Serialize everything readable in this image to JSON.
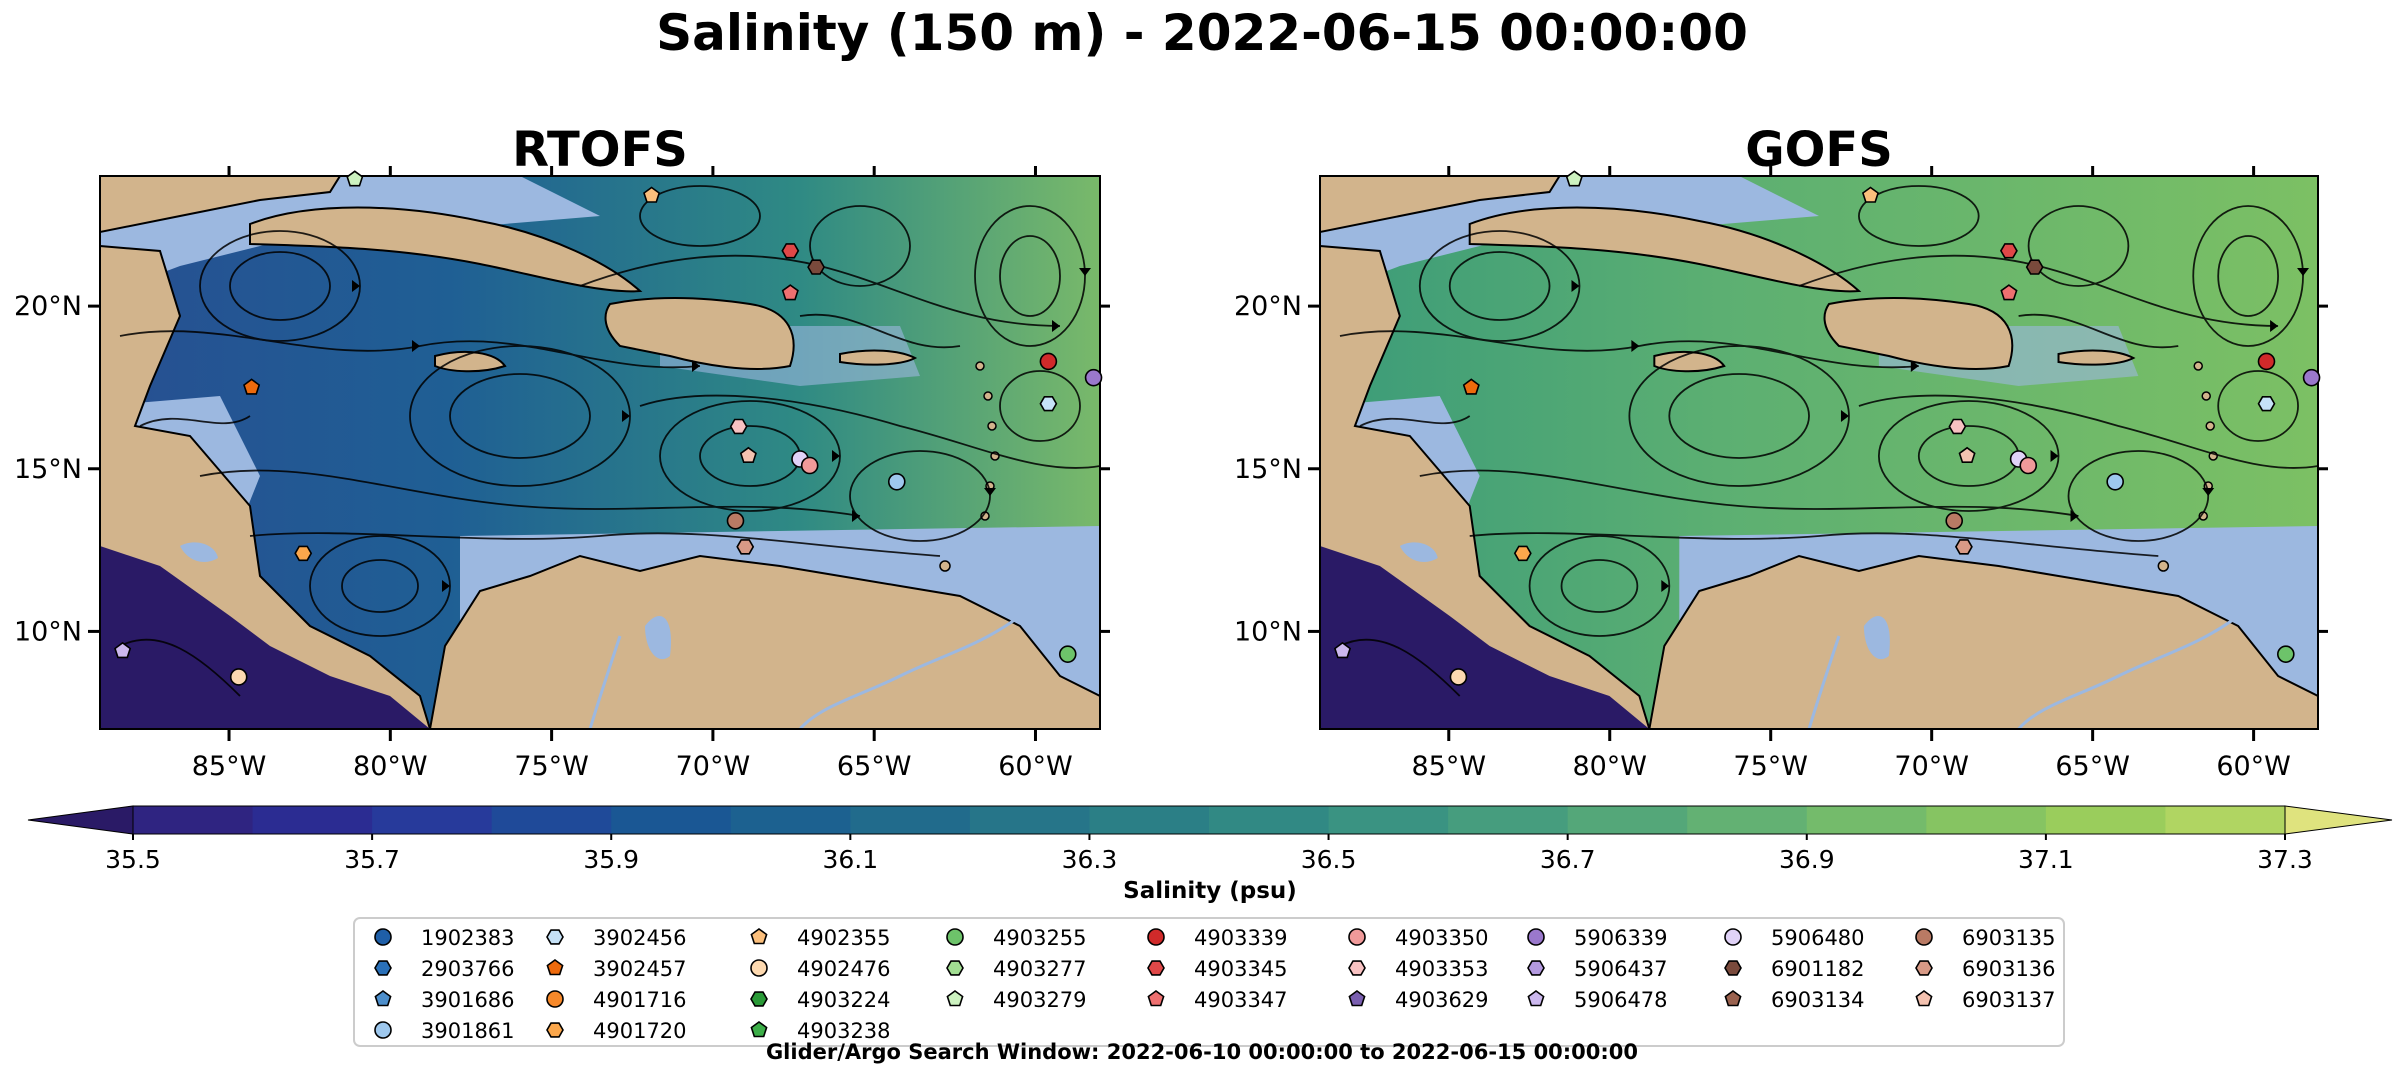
{
  "figure": {
    "suptitle": "Salinity (150 m) - 2022-06-15 00:00:00",
    "footer": "Glider/Argo Search Window: 2022-06-10 00:00:00 to 2022-06-15 00:00:00"
  },
  "chart_data": [
    {
      "type": "heatmap",
      "title": "RTOFS",
      "lon_range": [
        -89,
        -58
      ],
      "lat_range": [
        7,
        24
      ],
      "x_ticks": [
        "85°W",
        "80°W",
        "75°W",
        "70°W",
        "65°W",
        "60°W"
      ],
      "y_ticks": [
        "10°N",
        "15°N",
        "20°N"
      ],
      "colors": {
        "land": "#d2b48c",
        "shallow_water": "#9cb8e0"
      },
      "floats": [
        {
          "id": "3902457",
          "lon": -84.3,
          "lat": 17.5
        },
        {
          "id": "4901720",
          "lon": -82.7,
          "lat": 12.4
        },
        {
          "id": "4902476",
          "lon": -84.7,
          "lat": 8.6
        },
        {
          "id": "5906478",
          "lon": -88.3,
          "lat": 9.4
        },
        {
          "id": "4903279",
          "lon": -81.1,
          "lat": 23.9
        },
        {
          "id": "4902355",
          "lon": -71.9,
          "lat": 23.4
        },
        {
          "id": "4903339",
          "lon": -59.6,
          "lat": 18.3
        },
        {
          "id": "5906339",
          "lon": -58.2,
          "lat": 17.8
        },
        {
          "id": "3902456",
          "lon": -59.6,
          "lat": 17.0
        },
        {
          "id": "4903345",
          "lon": -67.6,
          "lat": 21.7
        },
        {
          "id": "4903347",
          "lon": -67.6,
          "lat": 20.4
        },
        {
          "id": "6901182",
          "lon": -66.8,
          "lat": 21.2
        },
        {
          "id": "4903353",
          "lon": -69.2,
          "lat": 16.3
        },
        {
          "id": "6903137",
          "lon": -68.9,
          "lat": 15.4
        },
        {
          "id": "5906480",
          "lon": -67.3,
          "lat": 15.3
        },
        {
          "id": "4903350",
          "lon": -67.0,
          "lat": 15.1
        },
        {
          "id": "3901861",
          "lon": -64.3,
          "lat": 14.6
        },
        {
          "id": "6903135",
          "lon": -69.3,
          "lat": 13.4
        },
        {
          "id": "6903136",
          "lon": -69.0,
          "lat": 12.6
        },
        {
          "id": "4903255",
          "lon": -59.0,
          "lat": 9.3
        }
      ]
    },
    {
      "type": "heatmap",
      "title": "GOFS",
      "lon_range": [
        -89,
        -58
      ],
      "lat_range": [
        7,
        24
      ],
      "x_ticks": [
        "85°W",
        "80°W",
        "75°W",
        "70°W",
        "65°W",
        "60°W"
      ],
      "y_ticks": [
        "10°N",
        "15°N",
        "20°N"
      ],
      "colors": {
        "land": "#d2b48c",
        "shallow_water": "#9cb8e0"
      },
      "floats": [
        {
          "id": "3902457",
          "lon": -84.3,
          "lat": 17.5
        },
        {
          "id": "4901720",
          "lon": -82.7,
          "lat": 12.4
        },
        {
          "id": "4902476",
          "lon": -84.7,
          "lat": 8.6
        },
        {
          "id": "5906478",
          "lon": -88.3,
          "lat": 9.4
        },
        {
          "id": "4903279",
          "lon": -81.1,
          "lat": 23.9
        },
        {
          "id": "4902355",
          "lon": -71.9,
          "lat": 23.4
        },
        {
          "id": "4903339",
          "lon": -59.6,
          "lat": 18.3
        },
        {
          "id": "5906339",
          "lon": -58.2,
          "lat": 17.8
        },
        {
          "id": "3902456",
          "lon": -59.6,
          "lat": 17.0
        },
        {
          "id": "4903345",
          "lon": -67.6,
          "lat": 21.7
        },
        {
          "id": "4903347",
          "lon": -67.6,
          "lat": 20.4
        },
        {
          "id": "6901182",
          "lon": -66.8,
          "lat": 21.2
        },
        {
          "id": "4903353",
          "lon": -69.2,
          "lat": 16.3
        },
        {
          "id": "6903137",
          "lon": -68.9,
          "lat": 15.4
        },
        {
          "id": "5906480",
          "lon": -67.3,
          "lat": 15.3
        },
        {
          "id": "4903350",
          "lon": -67.0,
          "lat": 15.1
        },
        {
          "id": "3901861",
          "lon": -64.3,
          "lat": 14.6
        },
        {
          "id": "6903135",
          "lon": -69.3,
          "lat": 13.4
        },
        {
          "id": "6903136",
          "lon": -69.0,
          "lat": 12.6
        },
        {
          "id": "4903255",
          "lon": -59.0,
          "lat": 9.3
        }
      ]
    }
  ],
  "colorbar": {
    "label": "Salinity (psu)",
    "range": [
      35.5,
      37.3
    ],
    "step": 0.1,
    "extend": "both",
    "tick_values": [
      35.5,
      35.7,
      35.9,
      36.1,
      36.3,
      36.5,
      36.7,
      36.9,
      37.1,
      37.3
    ],
    "tick_labels": [
      "35.5",
      "35.7",
      "35.9",
      "36.1",
      "36.3",
      "36.5",
      "36.7",
      "36.9",
      "37.1",
      "37.3"
    ],
    "min_color": "#2a1a66",
    "max_color": "#dfe37e",
    "colors": [
      "#2f2481",
      "#2b2c92",
      "#273a9b",
      "#1f4a99",
      "#1a5794",
      "#1c6190",
      "#216b8c",
      "#267589",
      "#2b7f86",
      "#318984",
      "#3a9382",
      "#469d7e",
      "#54a779",
      "#63b173",
      "#74bb6b",
      "#86c462",
      "#9acd5c",
      "#b0d562"
    ]
  },
  "legend": {
    "columns": [
      [
        {
          "label": "1902383",
          "shape": "circle",
          "color": "#1f5fa8"
        },
        {
          "label": "2903766",
          "shape": "hexagon",
          "color": "#2a70b8"
        },
        {
          "label": "3901686",
          "shape": "pentagon",
          "color": "#4d8fcc"
        },
        {
          "label": "3901861",
          "shape": "circle",
          "color": "#9ec8ee"
        }
      ],
      [
        {
          "label": "3902456",
          "shape": "hexagon",
          "color": "#c6e2f7"
        },
        {
          "label": "3902457",
          "shape": "pentagon",
          "color": "#ee6a0c"
        },
        {
          "label": "4901716",
          "shape": "circle",
          "color": "#f7892a"
        },
        {
          "label": "4901720",
          "shape": "hexagon",
          "color": "#fba74c"
        }
      ],
      [
        {
          "label": "4902355",
          "shape": "pentagon",
          "color": "#fbbf7c"
        },
        {
          "label": "4902476",
          "shape": "circle",
          "color": "#fdd9b0"
        },
        {
          "label": "4903224",
          "shape": "hexagon",
          "color": "#2a9a37"
        },
        {
          "label": "4903238",
          "shape": "pentagon",
          "color": "#3cae48"
        }
      ],
      [
        {
          "label": "4903255",
          "shape": "circle",
          "color": "#6dc36a"
        },
        {
          "label": "4903277",
          "shape": "hexagon",
          "color": "#a2de92"
        },
        {
          "label": "4903279",
          "shape": "pentagon",
          "color": "#cdf2c0"
        }
      ],
      [
        {
          "label": "4903339",
          "shape": "circle",
          "color": "#d02a2a"
        },
        {
          "label": "4903345",
          "shape": "hexagon",
          "color": "#e04848"
        },
        {
          "label": "4903347",
          "shape": "pentagon",
          "color": "#ee7070"
        }
      ],
      [
        {
          "label": "4903350",
          "shape": "circle",
          "color": "#f09a9a"
        },
        {
          "label": "4903353",
          "shape": "hexagon",
          "color": "#f8c2c2"
        },
        {
          "label": "4903629",
          "shape": "pentagon",
          "color": "#7a5fb0"
        }
      ],
      [
        {
          "label": "5906339",
          "shape": "circle",
          "color": "#9a78cc"
        },
        {
          "label": "5906437",
          "shape": "hexagon",
          "color": "#b49ae0"
        },
        {
          "label": "5906478",
          "shape": "pentagon",
          "color": "#ccb8ee"
        }
      ],
      [
        {
          "label": "5906480",
          "shape": "circle",
          "color": "#e0d2f7"
        },
        {
          "label": "6901182",
          "shape": "hexagon",
          "color": "#7a4a3c"
        },
        {
          "label": "6903134",
          "shape": "pentagon",
          "color": "#9a624f"
        }
      ],
      [
        {
          "label": "6903135",
          "shape": "circle",
          "color": "#b97a64"
        },
        {
          "label": "6903136",
          "shape": "hexagon",
          "color": "#d89a86"
        },
        {
          "label": "6903137",
          "shape": "pentagon",
          "color": "#f4c2b0"
        }
      ]
    ]
  }
}
